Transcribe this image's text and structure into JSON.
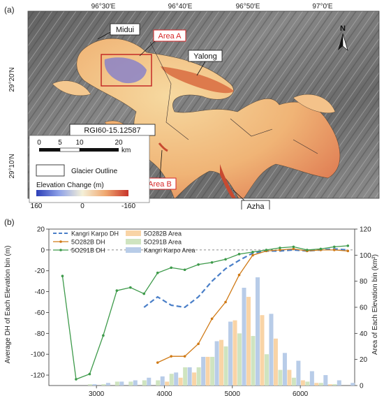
{
  "map": {
    "panel_label": "(a)",
    "lon_ticks": [
      "96°30′E",
      "96°40′E",
      "96°50′E",
      "97°0′E"
    ],
    "lat_ticks": [
      "29°20′N",
      "29°10′N"
    ],
    "north_label": "N",
    "callouts": {
      "midui": "Midui",
      "area_a": "Area A",
      "yalong": "Yalong",
      "rgi": "RGI60-15.12587",
      "area_b": "Area B",
      "azha": "Azha"
    },
    "scalebar": {
      "ticks": [
        "0",
        "5",
        "10",
        "20"
      ],
      "unit": "km"
    },
    "legend": {
      "outline_label": "Glacier Outline",
      "colorbar_title": "Elevation Change (m)",
      "colorbar_ticks": [
        "160",
        "0",
        "-160"
      ]
    },
    "colors": {
      "callout_red": "#d62728",
      "dem_dark": "#3a3a3a",
      "glacier_warm": "#f2b46f"
    }
  },
  "chart_data": {
    "type": "bar+line",
    "panel_label": "(b)",
    "xlabel": "",
    "ylabel_left": "Average DH of Each Elevation bin (m)",
    "ylabel_right": "Area of Each Elevation bin (km²)",
    "xlim": [
      2300,
      6800
    ],
    "ylim_left": [
      -130,
      20
    ],
    "ylim_right": [
      0,
      120
    ],
    "x_ticks": [
      3000,
      4000,
      5000,
      6000
    ],
    "y_ticks_left": [
      20,
      0,
      -20,
      -40,
      -60,
      -80,
      -100,
      -120
    ],
    "y_ticks_right": [
      0,
      20,
      40,
      60,
      80,
      100,
      120
    ],
    "zero_line": true,
    "legend": [
      "Kangri Karpo DH",
      "5O282B DH",
      "5O291B DH",
      "5O282B Area",
      "5O291B Area",
      "Kangri Karpo Area"
    ],
    "bin_centers": [
      2500,
      2700,
      2900,
      3100,
      3300,
      3500,
      3700,
      3900,
      4100,
      4300,
      4500,
      4700,
      4900,
      5100,
      5300,
      5500,
      5700,
      5900,
      6100,
      6300,
      6500,
      6700
    ],
    "area_series": [
      {
        "name": "5O282B Area",
        "color": "#f9d4a6",
        "values": [
          0,
          0,
          0,
          0,
          0,
          0,
          0,
          0,
          3,
          6,
          10,
          22,
          35,
          50,
          68,
          54,
          36,
          12,
          4,
          2,
          1,
          0
        ]
      },
      {
        "name": "5O291B Area",
        "color": "#cfe4c0",
        "values": [
          0,
          0,
          1,
          1,
          3,
          3,
          4,
          4,
          9,
          14,
          14,
          22,
          30,
          40,
          38,
          24,
          12,
          6,
          3,
          2,
          1,
          0
        ]
      },
      {
        "name": "Kangri Karpo Area",
        "color": "#b8cce8",
        "values": [
          0,
          0,
          1,
          2,
          3,
          4,
          6,
          7,
          10,
          14,
          22,
          34,
          49,
          75,
          83,
          55,
          25,
          19,
          11,
          8,
          4,
          2
        ]
      }
    ],
    "line_series": [
      {
        "name": "Kangri Karpo DH",
        "color": "#4a7fc8",
        "style": "dashed",
        "x": [
          3700,
          3900,
          4100,
          4300,
          4500,
          4700,
          4900,
          5100,
          5300,
          5500,
          5700,
          5900,
          6100,
          6300,
          6500,
          6700
        ],
        "y": [
          -55,
          -45,
          -53,
          -55,
          -45,
          -30,
          -18,
          -10,
          -3,
          -1,
          -1,
          0,
          -1,
          0,
          1,
          0
        ]
      },
      {
        "name": "5O282B DH",
        "color": "#d07a16",
        "style": "solid",
        "x": [
          3900,
          4100,
          4300,
          4500,
          4700,
          4900,
          5100,
          5300,
          5500,
          5700,
          5900,
          6100,
          6300,
          6500,
          6700
        ],
        "y": [
          -108,
          -102,
          -102,
          -90,
          -66,
          -50,
          -24,
          -5,
          -1,
          0,
          1,
          -1,
          0,
          0,
          -1
        ]
      },
      {
        "name": "5O291B DH",
        "color": "#3d9a4a",
        "style": "solid",
        "x": [
          2500,
          2700,
          2900,
          3100,
          3300,
          3500,
          3700,
          3900,
          4100,
          4300,
          4500,
          4700,
          4900,
          5100,
          5300,
          5500,
          5700,
          5900,
          6100,
          6300,
          6500,
          6700
        ],
        "y": [
          -25,
          -124,
          -119,
          -82,
          -39,
          -36,
          -42,
          -22,
          -17,
          -19,
          -14,
          -12,
          -9,
          -4,
          -2,
          0,
          2,
          3,
          0,
          1,
          3,
          4
        ]
      }
    ]
  }
}
